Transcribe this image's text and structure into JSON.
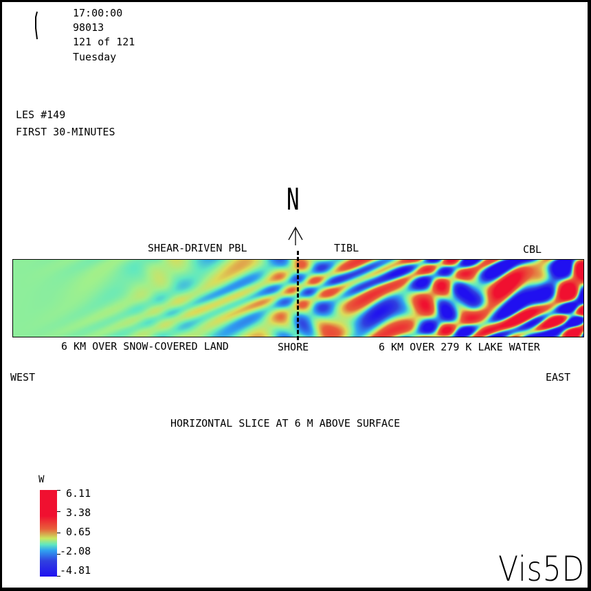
{
  "header": {
    "time": "17:00:00",
    "date": "98013",
    "step": "121 of 121",
    "day": "Tuesday"
  },
  "titles": {
    "line1": "LES #149",
    "line2": "FIRST 30-MINUTES"
  },
  "compass": {
    "label": "N"
  },
  "labels": {
    "shear": "SHEAR-DRIVEN PBL",
    "tibl": "TIBL",
    "cbl": "CBL",
    "land": "6 KM OVER SNOW-COVERED LAND",
    "shore": "SHORE",
    "lake": "6 KM OVER 279 K LAKE WATER",
    "west": "WEST",
    "east": "EAST",
    "slice": "HORIZONTAL SLICE AT 6 M ABOVE SURFACE"
  },
  "colorbar": {
    "variable": "W",
    "ticks": [
      "6.11",
      "3.38",
      "0.65",
      "-2.08",
      "-4.81"
    ],
    "max": 6.11,
    "min": -4.81
  },
  "logo": "Vis5D"
}
